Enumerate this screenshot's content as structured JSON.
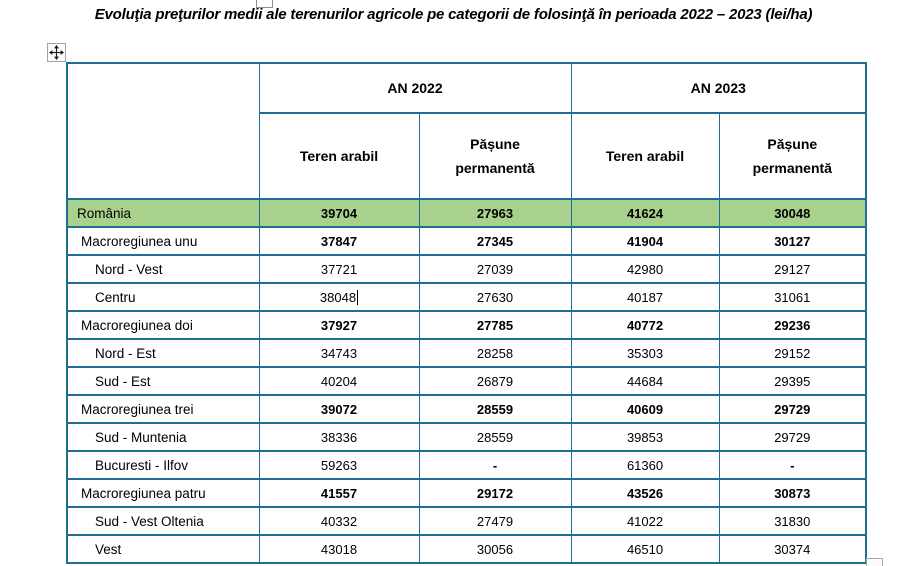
{
  "title": "Evoluţia preţurilor medii ale terenurilor agricole pe categorii de folosinţă în perioada 2022 – 2023 (lei/ha)",
  "colors": {
    "table_border": "#1f6e96",
    "highlight_row": "#a9d18e",
    "text": "#000000"
  },
  "icons": {
    "move_handle": "table-move-cross-arrows",
    "top_handle": "selection-handle",
    "bottom_right_handle": "table-resize-handle"
  },
  "table": {
    "year_headers": [
      "AN 2022",
      "AN 2023"
    ],
    "sub_headers": [
      "Teren arabil",
      "Pășune permanentă",
      "Teren arabil",
      "Pășune permanentă"
    ],
    "rows": [
      {
        "label": "România",
        "level": 0,
        "highlight": true,
        "bold_values": true,
        "values": [
          "39704",
          "27963",
          "41624",
          "30048"
        ]
      },
      {
        "label": "Macroregiunea unu",
        "level": 1,
        "highlight": false,
        "bold_values": true,
        "values": [
          "37847",
          "27345",
          "41904",
          "30127"
        ]
      },
      {
        "label": "Nord - Vest",
        "level": 2,
        "highlight": false,
        "bold_values": false,
        "values": [
          "37721",
          "27039",
          "42980",
          "29127"
        ]
      },
      {
        "label": "Centru",
        "level": 2,
        "highlight": false,
        "bold_values": false,
        "values": [
          "38048",
          "27630",
          "40187",
          "31061"
        ],
        "text_cursor_after_first_value": true
      },
      {
        "label": "Macroregiunea doi",
        "level": 1,
        "highlight": false,
        "bold_values": true,
        "values": [
          "37927",
          "27785",
          "40772",
          "29236"
        ]
      },
      {
        "label": "Nord - Est",
        "level": 2,
        "highlight": false,
        "bold_values": false,
        "values": [
          "34743",
          "28258",
          "35303",
          "29152"
        ]
      },
      {
        "label": "Sud - Est",
        "level": 2,
        "highlight": false,
        "bold_values": false,
        "values": [
          "40204",
          "26879",
          "44684",
          "29395"
        ]
      },
      {
        "label": "Macroregiunea trei",
        "level": 1,
        "highlight": false,
        "bold_values": true,
        "values": [
          "39072",
          "28559",
          "40609",
          "29729"
        ]
      },
      {
        "label": "Sud - Muntenia",
        "level": 2,
        "highlight": false,
        "bold_values": false,
        "values": [
          "38336",
          "28559",
          "39853",
          "29729"
        ]
      },
      {
        "label": "Bucuresti - Ilfov",
        "level": 2,
        "highlight": false,
        "bold_values": false,
        "values": [
          "59263",
          "-",
          "61360",
          "-"
        ]
      },
      {
        "label": "Macroregiunea patru",
        "level": 1,
        "highlight": false,
        "bold_values": true,
        "values": [
          "41557",
          "29172",
          "43526",
          "30873"
        ]
      },
      {
        "label": "Sud - Vest Oltenia",
        "level": 2,
        "highlight": false,
        "bold_values": false,
        "values": [
          "40332",
          "27479",
          "41022",
          "31830"
        ]
      },
      {
        "label": "Vest",
        "level": 2,
        "highlight": false,
        "bold_values": false,
        "values": [
          "43018",
          "30056",
          "46510",
          "30374"
        ]
      }
    ]
  }
}
